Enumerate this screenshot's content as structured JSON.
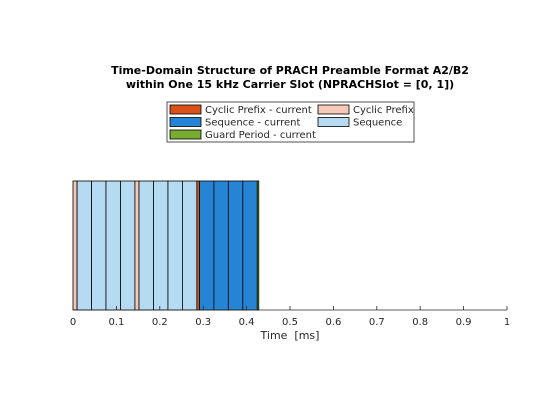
{
  "chart_data": {
    "type": "timeline",
    "title": [
      "Time-Domain Structure of PRACH Preamble Format A2/B2",
      "within One 15 kHz Carrier Slot (NPRACHSlot = [0, 1])"
    ],
    "xlabel": "Time  [ms]",
    "xlim": [
      0,
      1
    ],
    "xticks": [
      0,
      0.1,
      0.2,
      0.3,
      0.4,
      0.5,
      0.6,
      0.7,
      0.8,
      0.9,
      1
    ],
    "series": [
      {
        "name": "Cyclic Prefix - current",
        "color": "#d95319"
      },
      {
        "name": "Cyclic Prefix",
        "color": "#f5c8b8"
      },
      {
        "name": "Sequence - current",
        "color": "#2585d4"
      },
      {
        "name": "Sequence",
        "color": "#b7daf3"
      },
      {
        "name": "Guard Period - current",
        "color": "#77ac30"
      }
    ],
    "segments": [
      {
        "series": 1,
        "start": 0,
        "end": 0.0094
      },
      {
        "series": 3,
        "start": 0.0094,
        "end": 0.0427
      },
      {
        "series": 3,
        "start": 0.0427,
        "end": 0.076
      },
      {
        "series": 3,
        "start": 0.076,
        "end": 0.1094
      },
      {
        "series": 3,
        "start": 0.1094,
        "end": 0.1427
      },
      {
        "series": 1,
        "start": 0.1427,
        "end": 0.1521
      },
      {
        "series": 3,
        "start": 0.1521,
        "end": 0.1854
      },
      {
        "series": 3,
        "start": 0.1854,
        "end": 0.2188
      },
      {
        "series": 3,
        "start": 0.2188,
        "end": 0.2521
      },
      {
        "series": 3,
        "start": 0.2521,
        "end": 0.2854
      },
      {
        "series": 0,
        "start": 0.2854,
        "end": 0.2913
      },
      {
        "series": 2,
        "start": 0.2913,
        "end": 0.3246
      },
      {
        "series": 2,
        "start": 0.3246,
        "end": 0.3579
      },
      {
        "series": 2,
        "start": 0.3579,
        "end": 0.3913
      },
      {
        "series": 2,
        "start": 0.3913,
        "end": 0.4246
      },
      {
        "series": 4,
        "start": 0.4246,
        "end": 0.4281
      }
    ]
  }
}
